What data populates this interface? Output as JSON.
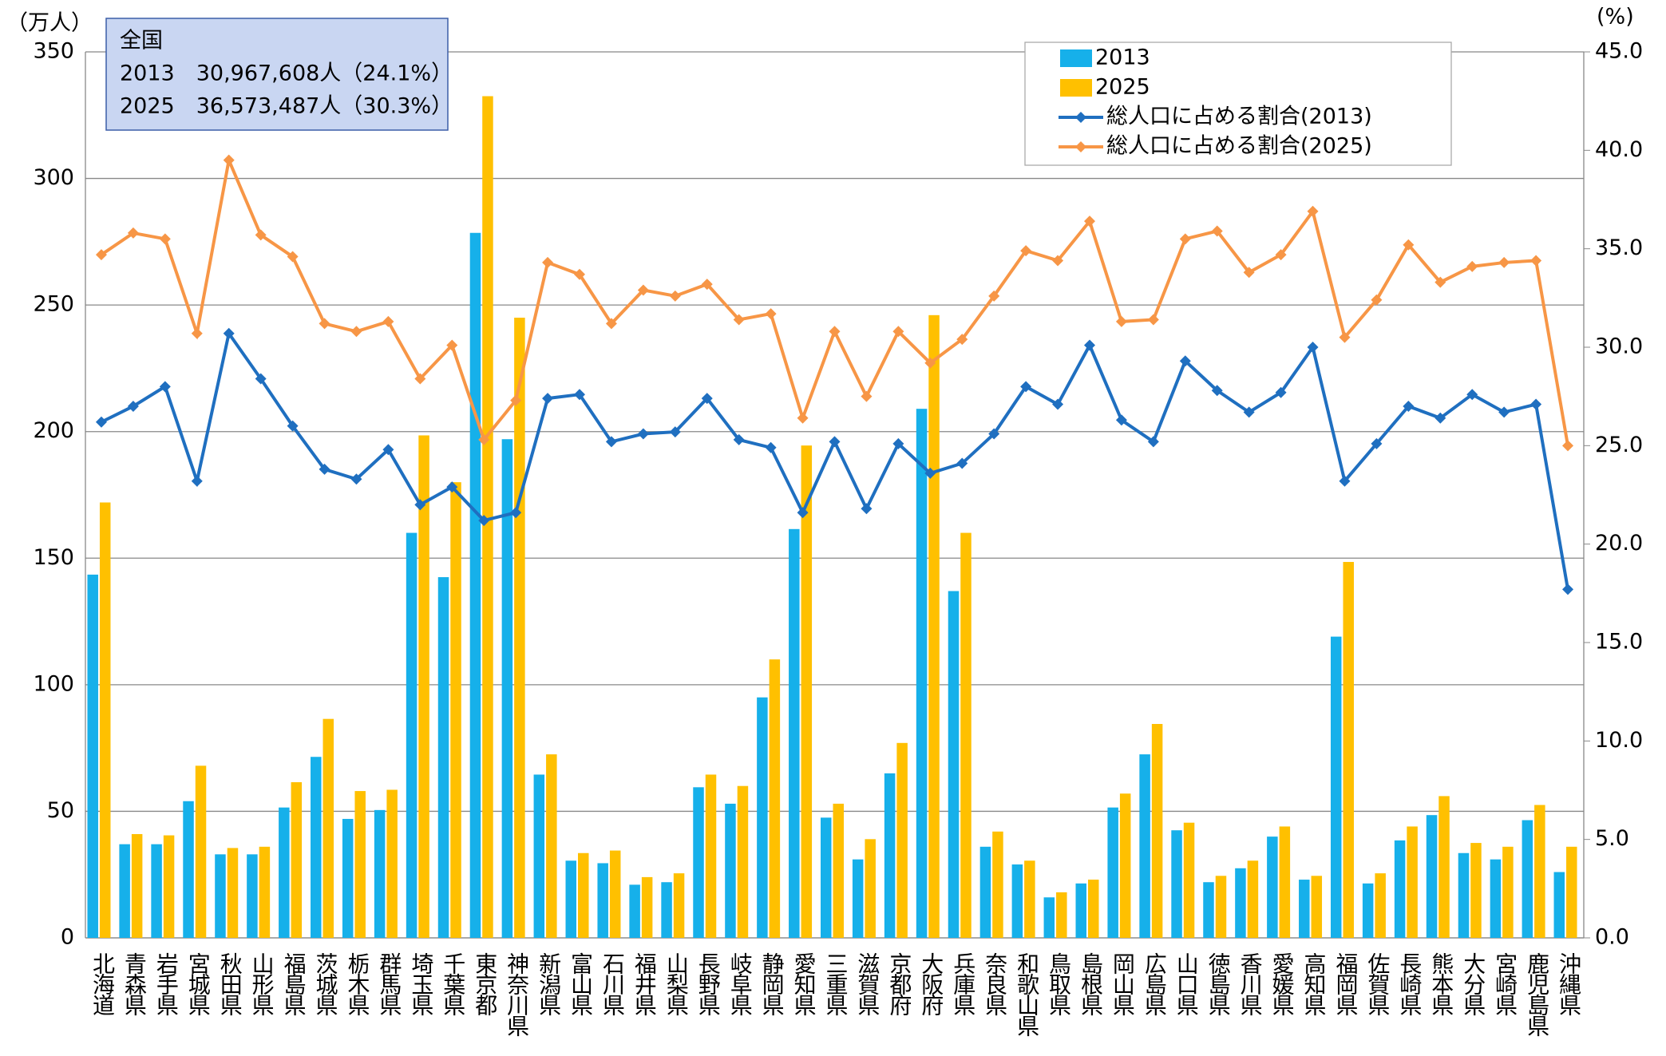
{
  "chart_data": {
    "type": "bar",
    "y_label": "（万人）",
    "y2_label": "(%)",
    "annotations": [
      "全国",
      "2013　30,967,608人（24.1%）",
      "2025　36,573,487人（30.3%）"
    ],
    "categories": [
      "北海道",
      "青森県",
      "岩手県",
      "宮城県",
      "秋田県",
      "山形県",
      "福島県",
      "茨城県",
      "栃木県",
      "群馬県",
      "埼玉県",
      "千葉県",
      "東京都",
      "神奈川県",
      "新潟県",
      "富山県",
      "石川県",
      "福井県",
      "山梨県",
      "長野県",
      "岐阜県",
      "静岡県",
      "愛知県",
      "三重県",
      "滋賀県",
      "京都府",
      "大阪府",
      "兵庫県",
      "奈良県",
      "和歌山県",
      "鳥取県",
      "島根県",
      "岡山県",
      "広島県",
      "山口県",
      "徳島県",
      "香川県",
      "愛媛県",
      "高知県",
      "福岡県",
      "佐賀県",
      "長崎県",
      "熊本県",
      "大分県",
      "宮崎県",
      "鹿児島県",
      "沖縄県"
    ],
    "series": [
      {
        "name": "2013",
        "type": "bar",
        "color": "#16b0ea",
        "values": [
          143.5,
          37,
          37,
          54,
          33,
          33,
          51.5,
          71.5,
          47,
          50.5,
          160,
          142.5,
          278.5,
          197,
          64.5,
          30.5,
          29.5,
          21,
          22,
          59.5,
          53,
          95,
          161.5,
          47.5,
          31,
          65,
          209,
          137,
          36,
          29,
          16,
          21.5,
          51.5,
          72.5,
          42.5,
          22,
          27.5,
          40,
          23,
          119,
          21.5,
          38.5,
          48.5,
          33.5,
          31,
          46.5,
          26
        ]
      },
      {
        "name": "2025",
        "type": "bar",
        "color": "#ffc000",
        "values": [
          172,
          41,
          40.5,
          68,
          35.5,
          36,
          61.5,
          86.5,
          58,
          58.5,
          198.5,
          180,
          332.5,
          245,
          72.5,
          33.5,
          34.5,
          24,
          25.5,
          64.5,
          60,
          110,
          194.5,
          53,
          39,
          77,
          246,
          160,
          42,
          30.5,
          18,
          23,
          57,
          84.5,
          45.5,
          24.5,
          30.5,
          44,
          24.5,
          148.5,
          25.5,
          44,
          56,
          37.5,
          36,
          52.5,
          36
        ]
      },
      {
        "name": "総人口に占める割合(2013)",
        "type": "line",
        "axis": "y2",
        "color": "#1f6fc0",
        "values": [
          26.2,
          27.0,
          28.0,
          23.2,
          30.7,
          28.4,
          26.0,
          23.8,
          23.3,
          24.8,
          22.0,
          22.9,
          21.2,
          21.6,
          27.4,
          27.6,
          25.2,
          25.6,
          25.7,
          27.4,
          25.3,
          24.9,
          21.6,
          25.2,
          21.8,
          25.1,
          23.6,
          24.1,
          25.6,
          28.0,
          27.1,
          30.1,
          26.3,
          25.2,
          29.3,
          27.8,
          26.7,
          27.7,
          30.0,
          23.2,
          25.1,
          27.0,
          26.4,
          27.6,
          26.7,
          27.1,
          17.7
        ]
      },
      {
        "name": "総人口に占める割合(2025)",
        "type": "line",
        "axis": "y2",
        "color": "#f79646",
        "values": [
          34.7,
          35.8,
          35.5,
          30.7,
          39.5,
          35.7,
          34.6,
          31.2,
          30.8,
          31.3,
          28.4,
          30.1,
          25.3,
          27.3,
          34.3,
          33.7,
          31.2,
          32.9,
          32.6,
          33.2,
          31.4,
          31.7,
          26.4,
          30.8,
          27.5,
          30.8,
          29.2,
          30.4,
          32.6,
          34.9,
          34.4,
          36.4,
          31.3,
          31.4,
          35.5,
          35.9,
          33.8,
          34.7,
          36.9,
          30.5,
          32.4,
          35.2,
          33.3,
          34.1,
          34.3,
          34.4,
          25.0
        ]
      }
    ],
    "ylim": [
      0,
      350
    ],
    "yticks": [
      0,
      50,
      100,
      150,
      200,
      250,
      300,
      350
    ],
    "y2lim": [
      0,
      45
    ],
    "y2ticks": [
      {
        "value": 0,
        "label": "0.0"
      },
      {
        "value": 5,
        "label": "5.0"
      },
      {
        "value": 10,
        "label": "10.0"
      },
      {
        "value": 15,
        "label": "15.0"
      },
      {
        "value": 20,
        "label": "20.0"
      },
      {
        "value": 25,
        "label": "25.0"
      },
      {
        "value": 30,
        "label": "30.0"
      },
      {
        "value": 35,
        "label": "35.0"
      },
      {
        "value": 40,
        "label": "40.0"
      },
      {
        "value": 45,
        "label": "45.0"
      }
    ],
    "grid": true,
    "legend": "upper right"
  }
}
